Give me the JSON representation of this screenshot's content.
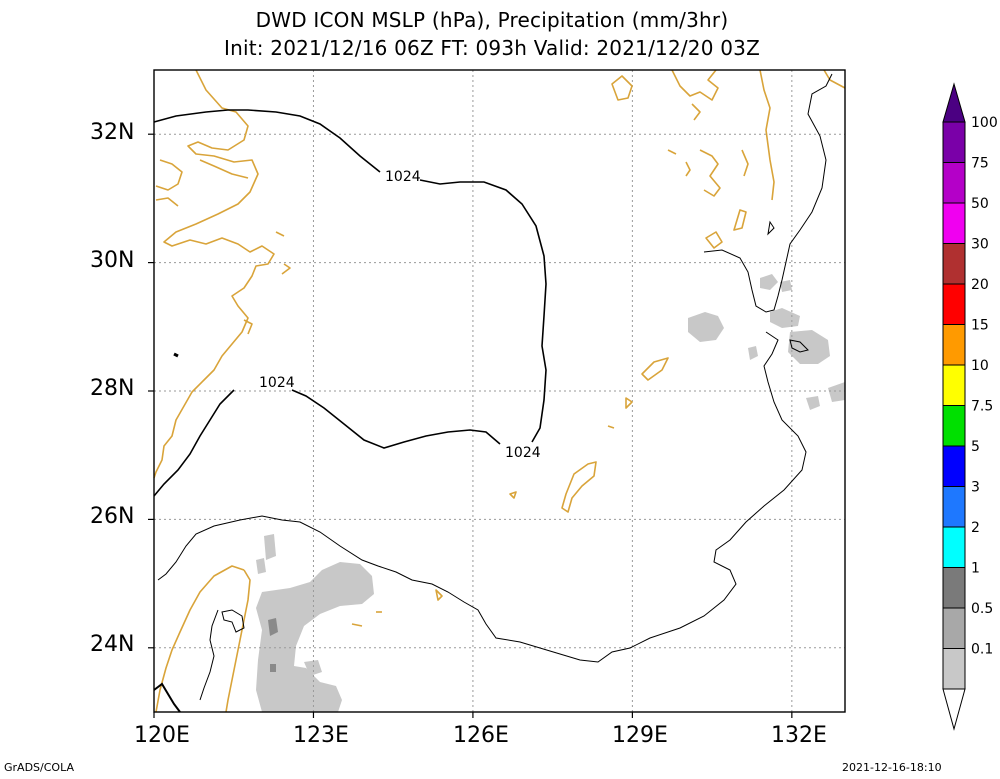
{
  "title": {
    "line1": "DWD ICON MSLP (hPa), Precipitation (mm/3hr)",
    "line2": "Init: 2021/12/16 06Z  FT: 093h  Valid: 2021/12/20 03Z"
  },
  "map": {
    "lon_range": [
      120,
      133
    ],
    "lat_range": [
      23,
      33
    ],
    "lon_ticks": [
      "120E",
      "123E",
      "126E",
      "129E",
      "132E"
    ],
    "lat_ticks": [
      "32N",
      "30N",
      "28N",
      "26N",
      "24N"
    ],
    "isobar_labels": [
      "1024",
      "1024",
      "1024"
    ],
    "isobar_value_hpa": 1024,
    "grid": "dotted",
    "colors": {
      "coastline": "#d9a43a",
      "isobar": "#000000",
      "grid": "#9a9a9a"
    }
  },
  "colorbar": {
    "labels": [
      "100",
      "75",
      "50",
      "30",
      "20",
      "15",
      "10",
      "7.5",
      "5",
      "3",
      "2",
      "1",
      "0.5",
      "0.1"
    ],
    "colors": [
      "#7a00a8",
      "#b400c8",
      "#f000f0",
      "#b03030",
      "#ff0000",
      "#ff9a00",
      "#ffff00",
      "#00e000",
      "#0000ff",
      "#1e78ff",
      "#00ffff",
      "#7a7a7a",
      "#a8a8a8",
      "#c8c8c8"
    ],
    "top_cap_color": "#4b0082"
  },
  "footer": {
    "left": "GrADS/COLA",
    "right": "2021-12-16-18:10"
  }
}
